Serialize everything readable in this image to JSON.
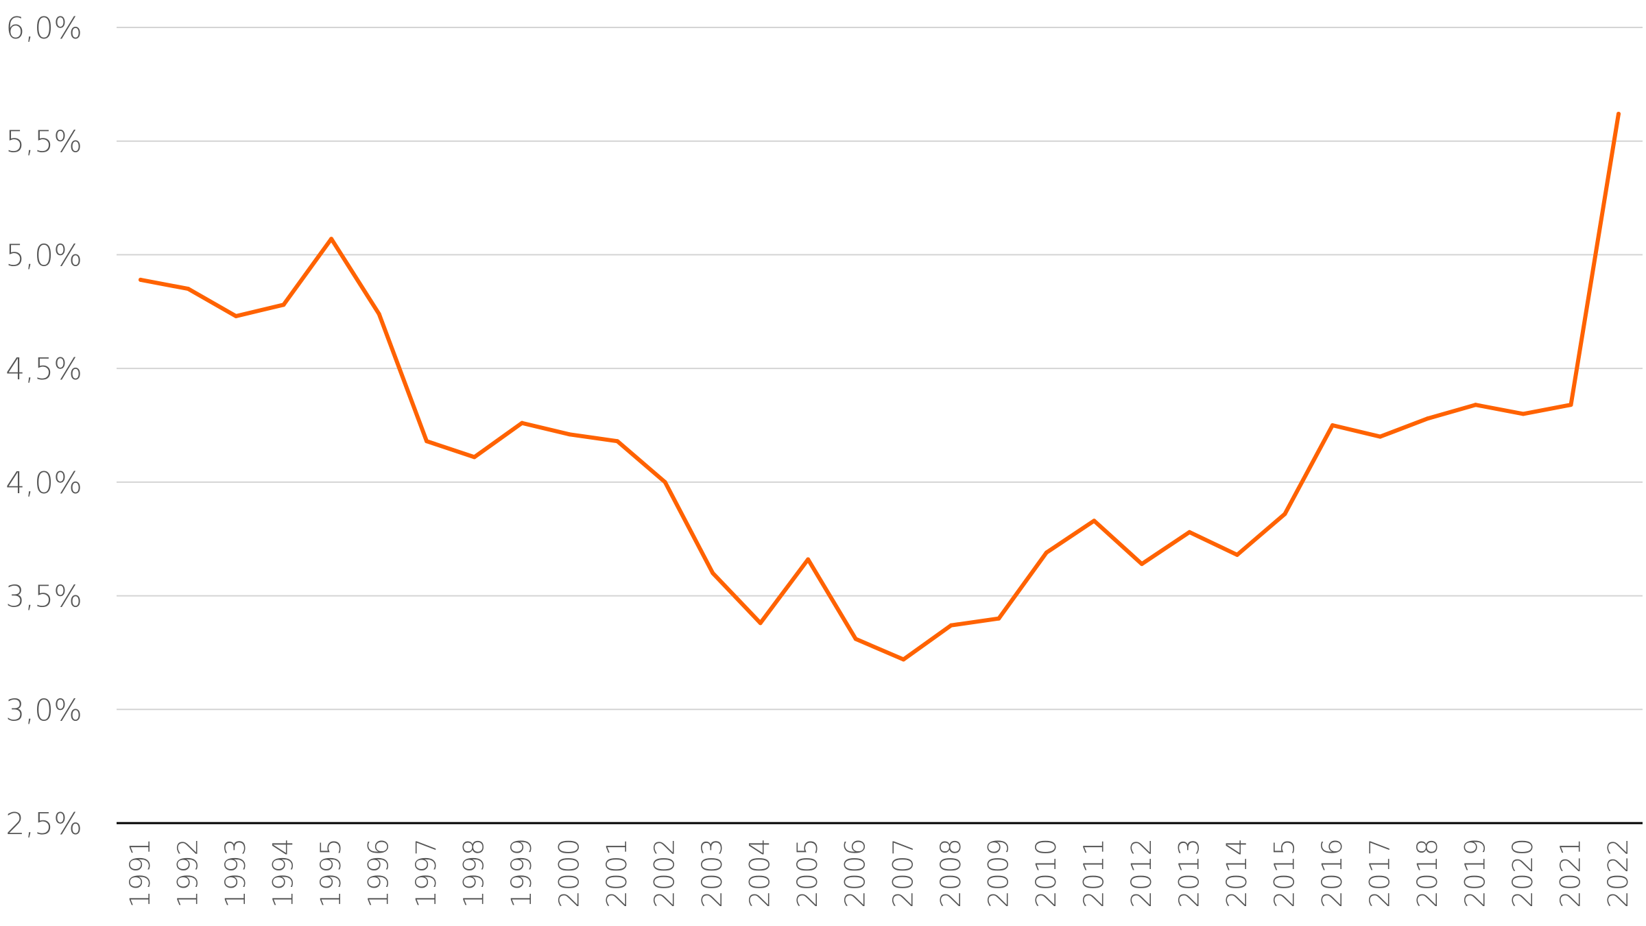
{
  "colors": {
    "series": "#ff6200",
    "grid": "#d4d4d4",
    "axis": "#000000",
    "text": "#555555"
  },
  "chart_data": {
    "type": "line",
    "title": "",
    "xlabel": "",
    "ylabel": "",
    "ylim": [
      2.5,
      6.0
    ],
    "y_ticks": [
      2.5,
      3.0,
      3.5,
      4.0,
      4.5,
      5.0,
      5.5,
      6.0
    ],
    "y_tick_labels": [
      "2,5%",
      "3,0%",
      "3,5%",
      "4,0%",
      "4,5%",
      "5,0%",
      "5,5%",
      "6,0%"
    ],
    "grid": true,
    "legend": "none",
    "categories": [
      "1991",
      "1992",
      "1993",
      "1994",
      "1995",
      "1996",
      "1997",
      "1998",
      "1999",
      "2000",
      "2001",
      "2002",
      "2003",
      "2004",
      "2005",
      "2006",
      "2007",
      "2008",
      "2009",
      "2010",
      "2011",
      "2012",
      "2013",
      "2014",
      "2015",
      "2016",
      "2017",
      "2018",
      "2019",
      "2020",
      "2021",
      "2022"
    ],
    "series": [
      {
        "values": [
          4.89,
          4.85,
          4.73,
          4.78,
          5.07,
          4.74,
          4.18,
          4.11,
          4.26,
          4.21,
          4.18,
          4.0,
          3.6,
          3.38,
          3.66,
          3.31,
          3.22,
          3.37,
          3.4,
          3.69,
          3.83,
          3.64,
          3.78,
          3.68,
          3.86,
          4.25,
          4.2,
          4.28,
          4.34,
          4.3,
          4.34,
          5.62
        ]
      }
    ]
  }
}
